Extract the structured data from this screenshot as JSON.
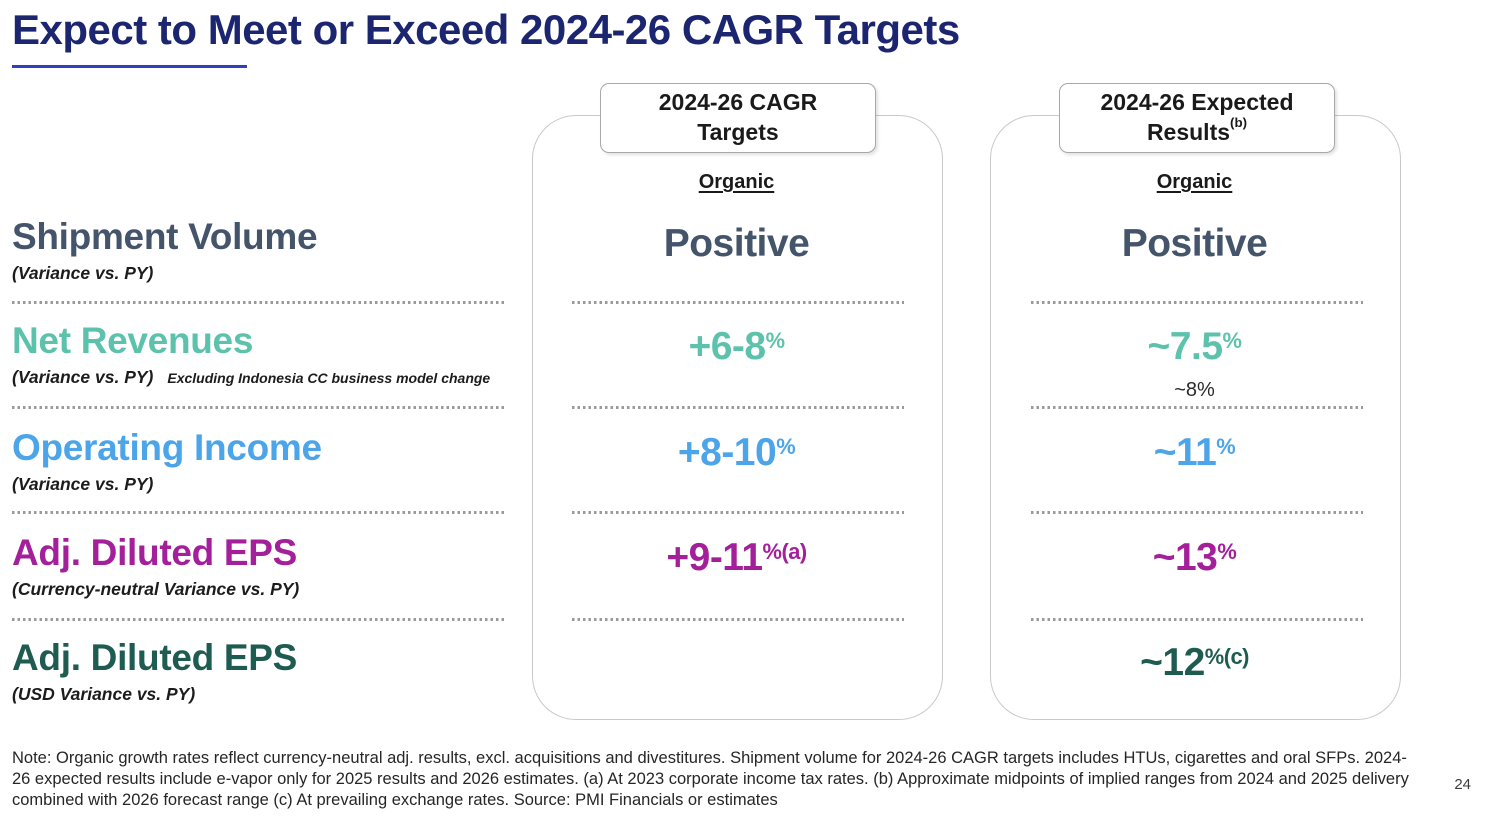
{
  "slide": {
    "title": "Expect to Meet or Exceed 2024-26 CAGR Targets",
    "page_number": "24",
    "note": "Note: Organic growth rates reflect currency-neutral adj. results, excl. acquisitions and divestitures. Shipment volume for 2024-26 CAGR targets includes HTUs, cigarettes and oral SFPs. 2024-26 expected results include e-vapor only for 2025 results and 2026 estimates. (a) At 2023 corporate income tax rates. (b) Approximate midpoints of implied ranges from 2024 and 2025 delivery combined with 2026 forecast range (c) At prevailing exchange rates. Source: PMI Financials or estimates"
  },
  "colors": {
    "title_navy": "#1c2670",
    "underline_blue": "#2f3fbe",
    "slate": "#44546A",
    "teal": "#5CC2AB",
    "blue": "#4CA5E8",
    "magenta": "#A4209B",
    "green": "#1E5B50"
  },
  "metrics": [
    {
      "label": "Shipment Volume",
      "sublabel": "(Variance vs. PY)",
      "subnote": "",
      "color": "#44546A"
    },
    {
      "label": "Net Revenues",
      "sublabel": "(Variance vs. PY)",
      "subnote": "Excluding Indonesia CC business model change",
      "color": "#5CC2AB"
    },
    {
      "label": "Operating Income",
      "sublabel": "(Variance vs. PY)",
      "subnote": "",
      "color": "#4CA5E8"
    },
    {
      "label": "Adj. Diluted EPS",
      "sublabel": "(Currency-neutral Variance vs. PY)",
      "subnote": "",
      "color": "#A4209B"
    },
    {
      "label": "Adj. Diluted EPS",
      "sublabel": "(USD Variance vs. PY)",
      "subnote": "",
      "color": "#1E5B50"
    }
  ],
  "columns": [
    {
      "header": "2024-26 CAGR Targets",
      "header_sup": "",
      "subheader": "Organic",
      "rows": [
        {
          "value": "Positive",
          "sup": "",
          "color": "#44546A"
        },
        {
          "value": "+6-8",
          "sup": "%",
          "color": "#5CC2AB"
        },
        {
          "value": "+8-10",
          "sup": "%",
          "color": "#4CA5E8"
        },
        {
          "value": "+9-11",
          "sup": "%(a)",
          "color": "#A4209B"
        },
        {
          "value": "",
          "sup": "",
          "color": "#1E5B50"
        }
      ]
    },
    {
      "header": "2024-26 Expected Results",
      "header_sup": "(b)",
      "subheader": "Organic",
      "rows": [
        {
          "value": "Positive",
          "sup": "",
          "color": "#44546A"
        },
        {
          "value": "~7.5",
          "sup": "%",
          "subvalue": "~8%",
          "color": "#5CC2AB"
        },
        {
          "value": "~11",
          "sup": "%",
          "color": "#4CA5E8"
        },
        {
          "value": "~13",
          "sup": "%",
          "color": "#A4209B"
        },
        {
          "value": "~12",
          "sup": "%(c)",
          "color": "#1E5B50"
        }
      ]
    }
  ]
}
